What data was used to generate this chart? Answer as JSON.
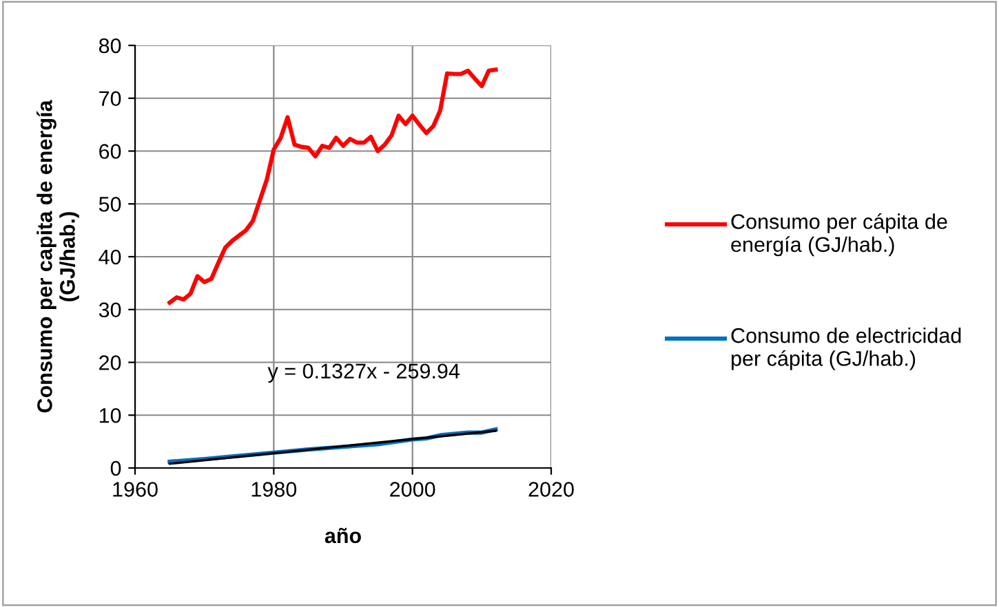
{
  "chart_data": {
    "type": "line",
    "xlabel": "año",
    "ylabel": "Consumo per capita de energía\n(GJ/hab.)",
    "xlim": [
      1960,
      2020
    ],
    "xticks": [
      1960,
      1980,
      2000,
      2020
    ],
    "ylim": [
      0,
      80
    ],
    "yticks": [
      0,
      10,
      20,
      30,
      40,
      50,
      60,
      70,
      80
    ],
    "grid": true,
    "legend": "right",
    "marker": "none",
    "line_style": "solid",
    "annotations": [
      "y = 0.1327x - 259.94"
    ],
    "series": [
      {
        "name": "Consumo per cápita de energía (GJ/hab.)",
        "color": "#ff0000",
        "x": [
          1965,
          1966,
          1967,
          1968,
          1969,
          1970,
          1971,
          1972,
          1973,
          1974,
          1975,
          1976,
          1977,
          1978,
          1979,
          1980,
          1981,
          1982,
          1983,
          1984,
          1985,
          1986,
          1987,
          1988,
          1989,
          1990,
          1991,
          1992,
          1993,
          1994,
          1995,
          1996,
          1997,
          1998,
          1999,
          2000,
          2001,
          2002,
          2003,
          2004,
          2005,
          2006,
          2007,
          2008,
          2009,
          2010,
          2011,
          2012
        ],
        "values": [
          31.3,
          32.3,
          31.9,
          33,
          36.3,
          35.2,
          35.8,
          38.8,
          41.7,
          43,
          44,
          45,
          46.8,
          50.7,
          54.6,
          60.3,
          62.5,
          66.4,
          61.2,
          60.8,
          60.6,
          59,
          61,
          60.6,
          62.5,
          61,
          62.3,
          61.6,
          61.6,
          62.7,
          60,
          61.2,
          63,
          66.7,
          65.1,
          66.7,
          65,
          63.4,
          64.7,
          67.7,
          74.7,
          74.6,
          74.6,
          75.2,
          73.7,
          72.3,
          75.2,
          75.4
        ]
      },
      {
        "name": "Consumo de electricidad per cápita (GJ/hab.)",
        "color": "#0070c0",
        "x": [
          1965,
          1970,
          1975,
          1980,
          1985,
          1990,
          1995,
          2000,
          2002,
          2004,
          2008,
          2010,
          2012
        ],
        "values": [
          1.2,
          1.7,
          2.3,
          2.9,
          3.5,
          4.0,
          4.5,
          5.4,
          5.6,
          6.2,
          6.7,
          6.7,
          7.3
        ]
      },
      {
        "type": "line",
        "color": "#000000",
        "x": [
          1965,
          2012
        ],
        "values": [
          0.81,
          7.05
        ]
      }
    ]
  }
}
